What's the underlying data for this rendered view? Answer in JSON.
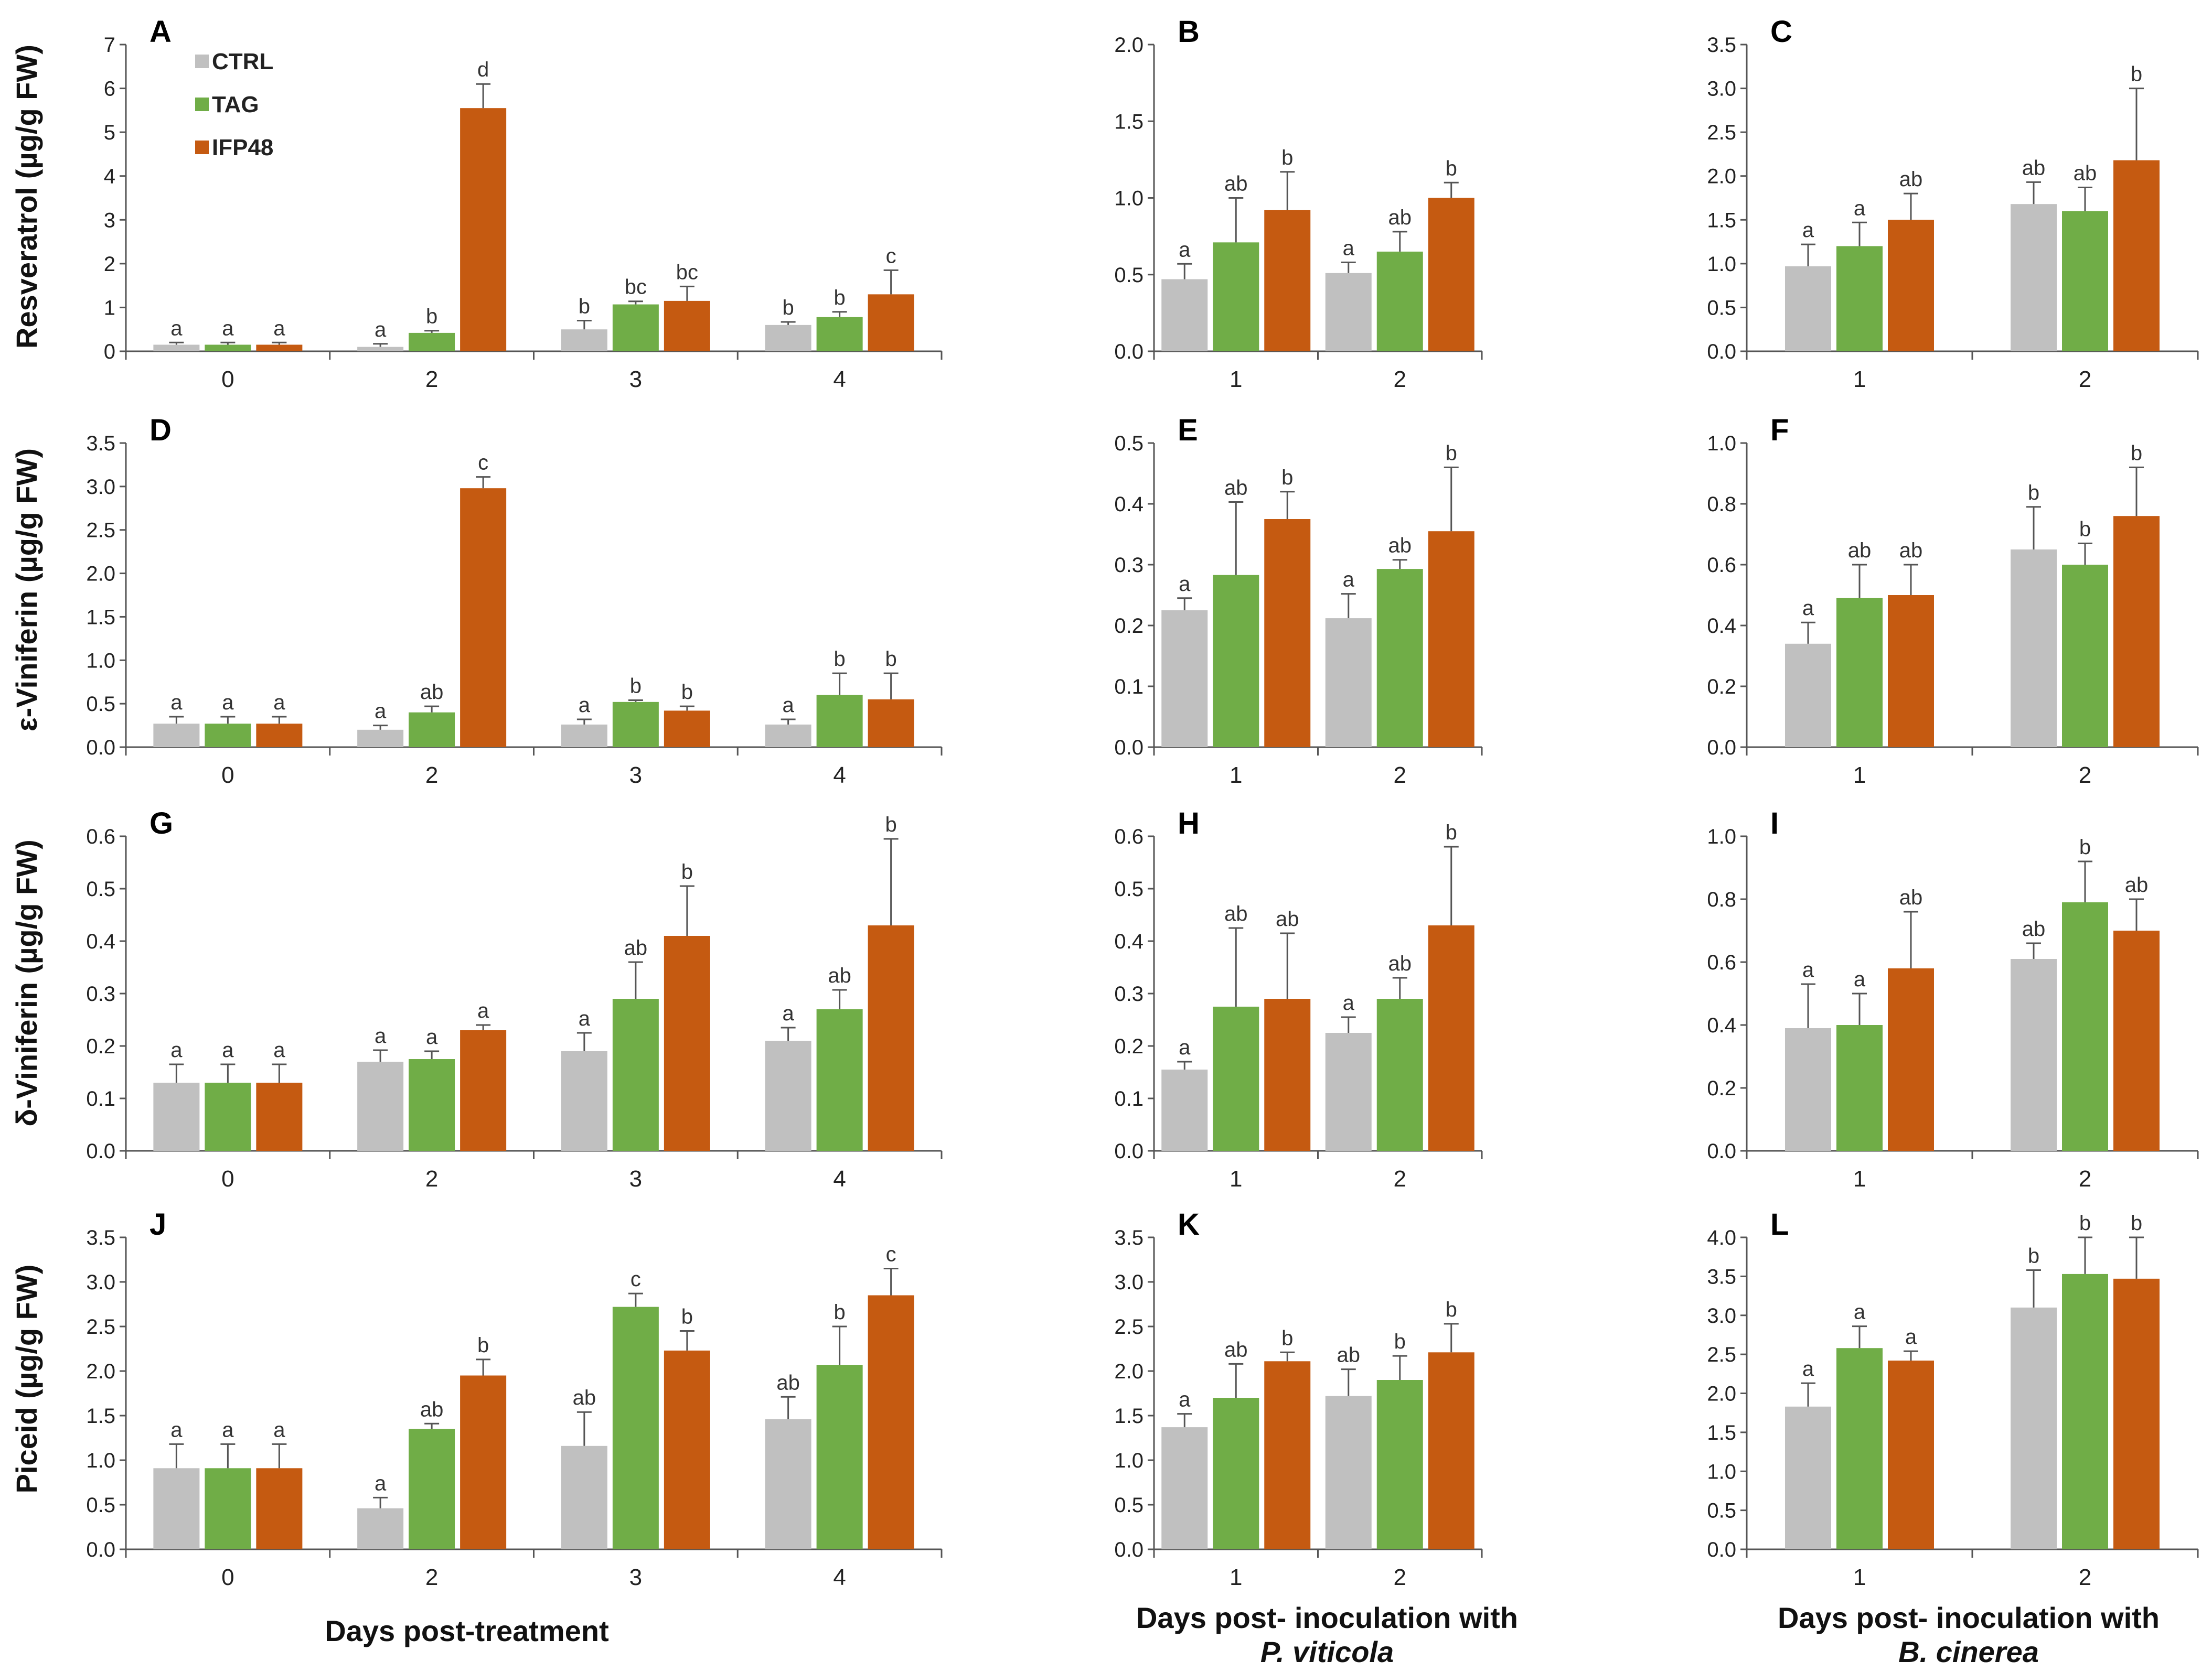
{
  "colors": {
    "CTRL": "#c0c0c0",
    "TAG": "#70ad47",
    "IFP48": "#c55a11"
  },
  "legend": [
    "CTRL",
    "TAG",
    "IFP48"
  ],
  "row_labels": [
    "Resveratrol (µg/g FW)",
    "ε-Viniferin (µg/g FW)",
    "δ-Viniferin (µg/g FW)",
    "Piceid (µg/g FW)"
  ],
  "column_xlabels": [
    {
      "line1": "Days post-treatment",
      "line2": ""
    },
    {
      "line1": "Days post- inoculation with",
      "line2": "P. viticola"
    },
    {
      "line1": "Days post- inoculation with",
      "line2": "B. cinerea"
    }
  ],
  "chart_data": [
    {
      "panel": "A",
      "type": "bar",
      "row": 0,
      "col": 0,
      "ylabel": "Resveratrol (µg/g FW)",
      "xlabel": "Days post-treatment",
      "ylim": [
        0,
        7
      ],
      "yticks": [
        "0",
        "1",
        "2",
        "3",
        "4",
        "5",
        "6",
        "7"
      ],
      "categories": [
        "0",
        "2",
        "3",
        "4"
      ],
      "series": [
        {
          "name": "CTRL",
          "values": [
            0.15,
            0.1,
            0.5,
            0.6
          ],
          "errors": [
            0.05,
            0.07,
            0.2,
            0.07
          ],
          "labels": [
            "a",
            "a",
            "b",
            "b"
          ]
        },
        {
          "name": "TAG",
          "values": [
            0.15,
            0.42,
            1.07,
            0.78
          ],
          "errors": [
            0.05,
            0.05,
            0.07,
            0.12
          ],
          "labels": [
            "a",
            "b",
            "bc",
            "b"
          ]
        },
        {
          "name": "IFP48",
          "values": [
            0.15,
            5.55,
            1.15,
            1.3
          ],
          "errors": [
            0.05,
            0.55,
            0.33,
            0.55
          ],
          "labels": [
            "a",
            "d",
            "bc",
            "c"
          ]
        }
      ]
    },
    {
      "panel": "B",
      "type": "bar",
      "row": 0,
      "col": 1,
      "ylabel": "Resveratrol (µg/g FW)",
      "xlabel": "Days post- inoculation with P. viticola",
      "ylim": [
        0,
        2
      ],
      "yticks": [
        "0.0",
        "0.5",
        "1.0",
        "1.5",
        "2.0"
      ],
      "categories": [
        "1",
        "2"
      ],
      "series": [
        {
          "name": "CTRL",
          "values": [
            0.47,
            0.51
          ],
          "errors": [
            0.1,
            0.07
          ],
          "labels": [
            "a",
            "a"
          ]
        },
        {
          "name": "TAG",
          "values": [
            0.71,
            0.65
          ],
          "errors": [
            0.29,
            0.13
          ],
          "labels": [
            "ab",
            "ab"
          ]
        },
        {
          "name": "IFP48",
          "values": [
            0.92,
            1.0
          ],
          "errors": [
            0.25,
            0.1
          ],
          "labels": [
            "b",
            "b"
          ]
        }
      ]
    },
    {
      "panel": "C",
      "type": "bar",
      "row": 0,
      "col": 2,
      "ylabel": "Resveratrol (µg/g FW)",
      "xlabel": "Days post- inoculation with B. cinerea",
      "ylim": [
        0,
        3.5
      ],
      "yticks": [
        "0.0",
        "0.5",
        "1.0",
        "1.5",
        "2.0",
        "2.5",
        "3.0",
        "3.5"
      ],
      "categories": [
        "1",
        "2"
      ],
      "series": [
        {
          "name": "CTRL",
          "values": [
            0.97,
            1.68
          ],
          "errors": [
            0.25,
            0.25
          ],
          "labels": [
            "a",
            "ab"
          ]
        },
        {
          "name": "TAG",
          "values": [
            1.2,
            1.6
          ],
          "errors": [
            0.27,
            0.27
          ],
          "labels": [
            "a",
            "ab"
          ]
        },
        {
          "name": "IFP48",
          "values": [
            1.5,
            2.18
          ],
          "errors": [
            0.3,
            0.82
          ],
          "labels": [
            "ab",
            "b"
          ]
        }
      ]
    },
    {
      "panel": "D",
      "type": "bar",
      "row": 1,
      "col": 0,
      "ylabel": "ε-Viniferin (µg/g FW)",
      "xlabel": "Days post-treatment",
      "ylim": [
        0,
        3.5
      ],
      "yticks": [
        "0.0",
        "0.5",
        "1.0",
        "1.5",
        "2.0",
        "2.5",
        "3.0",
        "3.5"
      ],
      "categories": [
        "0",
        "2",
        "3",
        "4"
      ],
      "series": [
        {
          "name": "CTRL",
          "values": [
            0.27,
            0.2,
            0.26,
            0.26
          ],
          "errors": [
            0.08,
            0.05,
            0.06,
            0.06
          ],
          "labels": [
            "a",
            "a",
            "a",
            "a"
          ]
        },
        {
          "name": "TAG",
          "values": [
            0.27,
            0.4,
            0.52,
            0.6
          ],
          "errors": [
            0.08,
            0.07,
            0.02,
            0.25
          ],
          "labels": [
            "a",
            "ab",
            "b",
            "b"
          ]
        },
        {
          "name": "IFP48",
          "values": [
            0.27,
            2.98,
            0.42,
            0.55
          ],
          "errors": [
            0.08,
            0.13,
            0.05,
            0.3
          ],
          "labels": [
            "a",
            "c",
            "b",
            "b"
          ]
        }
      ]
    },
    {
      "panel": "E",
      "type": "bar",
      "row": 1,
      "col": 1,
      "ylabel": "ε-Viniferin (µg/g FW)",
      "xlabel": "Days post- inoculation with P. viticola",
      "ylim": [
        0,
        0.5
      ],
      "yticks": [
        "0.0",
        "0.1",
        "0.2",
        "0.3",
        "0.4",
        "0.5"
      ],
      "categories": [
        "1",
        "2"
      ],
      "series": [
        {
          "name": "CTRL",
          "values": [
            0.225,
            0.212
          ],
          "errors": [
            0.02,
            0.04
          ],
          "labels": [
            "a",
            "a"
          ]
        },
        {
          "name": "TAG",
          "values": [
            0.283,
            0.293
          ],
          "errors": [
            0.12,
            0.015
          ],
          "labels": [
            "ab",
            "ab"
          ]
        },
        {
          "name": "IFP48",
          "values": [
            0.375,
            0.355
          ],
          "errors": [
            0.045,
            0.105
          ],
          "labels": [
            "b",
            "b"
          ]
        }
      ]
    },
    {
      "panel": "F",
      "type": "bar",
      "row": 1,
      "col": 2,
      "ylabel": "ε-Viniferin (µg/g FW)",
      "xlabel": "Days post- inoculation with B. cinerea",
      "ylim": [
        0,
        1
      ],
      "yticks": [
        "0.0",
        "0.2",
        "0.4",
        "0.6",
        "0.8",
        "1.0"
      ],
      "categories": [
        "1",
        "2"
      ],
      "series": [
        {
          "name": "CTRL",
          "values": [
            0.34,
            0.65
          ],
          "errors": [
            0.07,
            0.14
          ],
          "labels": [
            "a",
            "b"
          ]
        },
        {
          "name": "TAG",
          "values": [
            0.49,
            0.6
          ],
          "errors": [
            0.11,
            0.07
          ],
          "labels": [
            "ab",
            "b"
          ]
        },
        {
          "name": "IFP48",
          "values": [
            0.5,
            0.76
          ],
          "errors": [
            0.1,
            0.16
          ],
          "labels": [
            "ab",
            "b"
          ]
        }
      ]
    },
    {
      "panel": "G",
      "type": "bar",
      "row": 2,
      "col": 0,
      "ylabel": "δ-Viniferin (µg/g FW)",
      "xlabel": "Days post-treatment",
      "ylim": [
        0,
        0.6
      ],
      "yticks": [
        "0.0",
        "0.1",
        "0.2",
        "0.3",
        "0.4",
        "0.5",
        "0.6"
      ],
      "categories": [
        "0",
        "2",
        "3",
        "4"
      ],
      "series": [
        {
          "name": "CTRL",
          "values": [
            0.13,
            0.17,
            0.19,
            0.21
          ],
          "errors": [
            0.035,
            0.022,
            0.035,
            0.025
          ],
          "labels": [
            "a",
            "a",
            "a",
            "a"
          ]
        },
        {
          "name": "TAG",
          "values": [
            0.13,
            0.175,
            0.29,
            0.27
          ],
          "errors": [
            0.035,
            0.015,
            0.07,
            0.037
          ],
          "labels": [
            "a",
            "a",
            "ab",
            "ab"
          ]
        },
        {
          "name": "IFP48",
          "values": [
            0.13,
            0.23,
            0.41,
            0.43
          ],
          "errors": [
            0.035,
            0.01,
            0.095,
            0.165
          ],
          "labels": [
            "a",
            "a",
            "b",
            "b"
          ]
        }
      ]
    },
    {
      "panel": "H",
      "type": "bar",
      "row": 2,
      "col": 1,
      "ylabel": "δ-Viniferin (µg/g FW)",
      "xlabel": "Days post- inoculation with P. viticola",
      "ylim": [
        0,
        0.6
      ],
      "yticks": [
        "0.0",
        "0.1",
        "0.2",
        "0.3",
        "0.4",
        "0.5",
        "0.6"
      ],
      "categories": [
        "1",
        "2"
      ],
      "series": [
        {
          "name": "CTRL",
          "values": [
            0.155,
            0.225
          ],
          "errors": [
            0.015,
            0.03
          ],
          "labels": [
            "a",
            "a"
          ]
        },
        {
          "name": "TAG",
          "values": [
            0.275,
            0.29
          ],
          "errors": [
            0.15,
            0.04
          ],
          "labels": [
            "ab",
            "ab"
          ]
        },
        {
          "name": "IFP48",
          "values": [
            0.29,
            0.43
          ],
          "errors": [
            0.125,
            0.15
          ],
          "labels": [
            "ab",
            "b"
          ]
        }
      ]
    },
    {
      "panel": "I",
      "type": "bar",
      "row": 2,
      "col": 2,
      "ylabel": "δ-Viniferin (µg/g FW)",
      "xlabel": "Days post- inoculation with B. cinerea",
      "ylim": [
        0,
        1
      ],
      "yticks": [
        "0.0",
        "0.2",
        "0.4",
        "0.6",
        "0.8",
        "1.0"
      ],
      "categories": [
        "1",
        "2"
      ],
      "series": [
        {
          "name": "CTRL",
          "values": [
            0.39,
            0.61
          ],
          "errors": [
            0.14,
            0.05
          ],
          "labels": [
            "a",
            "ab"
          ]
        },
        {
          "name": "TAG",
          "values": [
            0.4,
            0.79
          ],
          "errors": [
            0.1,
            0.13
          ],
          "labels": [
            "a",
            "b"
          ]
        },
        {
          "name": "IFP48",
          "values": [
            0.58,
            0.7
          ],
          "errors": [
            0.18,
            0.1
          ],
          "labels": [
            "ab",
            "ab"
          ]
        }
      ]
    },
    {
      "panel": "J",
      "type": "bar",
      "row": 3,
      "col": 0,
      "ylabel": "Piceid (µg/g FW)",
      "xlabel": "Days post-treatment",
      "ylim": [
        0,
        3.5
      ],
      "yticks": [
        "0.0",
        "0.5",
        "1.0",
        "1.5",
        "2.0",
        "2.5",
        "3.0",
        "3.5"
      ],
      "categories": [
        "0",
        "2",
        "3",
        "4"
      ],
      "series": [
        {
          "name": "CTRL",
          "values": [
            0.91,
            0.46,
            1.16,
            1.46
          ],
          "errors": [
            0.27,
            0.12,
            0.38,
            0.25
          ],
          "labels": [
            "a",
            "a",
            "ab",
            "ab"
          ]
        },
        {
          "name": "TAG",
          "values": [
            0.91,
            1.35,
            2.72,
            2.07
          ],
          "errors": [
            0.27,
            0.06,
            0.15,
            0.43
          ],
          "labels": [
            "a",
            "ab",
            "c",
            "b"
          ]
        },
        {
          "name": "IFP48",
          "values": [
            0.91,
            1.95,
            2.23,
            2.85
          ],
          "errors": [
            0.27,
            0.18,
            0.22,
            0.3
          ],
          "labels": [
            "a",
            "b",
            "b",
            "c"
          ]
        }
      ]
    },
    {
      "panel": "K",
      "type": "bar",
      "row": 3,
      "col": 1,
      "ylabel": "Piceid (µg/g FW)",
      "xlabel": "Days post- inoculation with P. viticola",
      "ylim": [
        0,
        3.5
      ],
      "yticks": [
        "0.0",
        "0.5",
        "1.0",
        "1.5",
        "2.0",
        "2.5",
        "3.0",
        "3.5"
      ],
      "categories": [
        "1",
        "2"
      ],
      "series": [
        {
          "name": "CTRL",
          "values": [
            1.37,
            1.72
          ],
          "errors": [
            0.15,
            0.3
          ],
          "labels": [
            "a",
            "ab"
          ]
        },
        {
          "name": "TAG",
          "values": [
            1.7,
            1.9
          ],
          "errors": [
            0.38,
            0.27
          ],
          "labels": [
            "ab",
            "b"
          ]
        },
        {
          "name": "IFP48",
          "values": [
            2.11,
            2.21
          ],
          "errors": [
            0.1,
            0.32
          ],
          "labels": [
            "b",
            "b"
          ]
        }
      ]
    },
    {
      "panel": "L",
      "type": "bar",
      "row": 3,
      "col": 2,
      "ylabel": "Piceid (µg/g FW)",
      "xlabel": "Days post- inoculation with B. cinerea",
      "ylim": [
        0,
        4
      ],
      "yticks": [
        "0.0",
        "0.5",
        "1.0",
        "1.5",
        "2.0",
        "2.5",
        "3.0",
        "3.5",
        "4.0"
      ],
      "categories": [
        "1",
        "2"
      ],
      "series": [
        {
          "name": "CTRL",
          "values": [
            1.83,
            3.1
          ],
          "errors": [
            0.3,
            0.48
          ],
          "labels": [
            "a",
            "b"
          ]
        },
        {
          "name": "TAG",
          "values": [
            2.58,
            3.53
          ],
          "errors": [
            0.28,
            0.47
          ],
          "labels": [
            "a",
            "b"
          ]
        },
        {
          "name": "IFP48",
          "values": [
            2.42,
            3.47
          ],
          "errors": [
            0.12,
            0.53
          ],
          "labels": [
            "a",
            "b"
          ]
        }
      ]
    }
  ]
}
